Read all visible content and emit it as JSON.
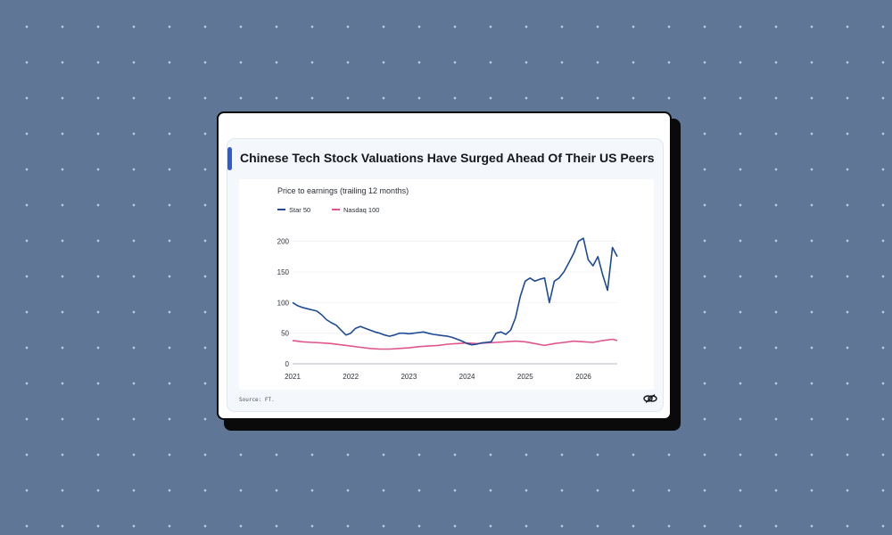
{
  "card": {
    "title": "Chinese Tech Stock Valuations Have Surged Ahead Of Their US Peers",
    "source": "Source: FT."
  },
  "colors": {
    "background": "#5f7696",
    "accent": "#2e5bd6",
    "star50": "#1e4b94",
    "nasdaq100": "#e0558f"
  },
  "icons": {
    "logo": "interlocked-rings-logo-icon"
  },
  "chart_data": {
    "type": "line",
    "title": "Price to earnings (trailing 12 months)",
    "xlabel": "",
    "ylabel": "",
    "x_ticks": [
      "2021",
      "2022",
      "2023",
      "2024",
      "2025",
      "2026"
    ],
    "y_ticks": [
      0,
      50,
      100,
      150,
      200
    ],
    "xlim": [
      "2021-01",
      "2026-08"
    ],
    "ylim": [
      0,
      240
    ],
    "grid": "horizontal",
    "legend": "top-left",
    "series": [
      {
        "name": "Star 50",
        "color": "#1e4b94",
        "points": [
          [
            "2021-01",
            100
          ],
          [
            "2021-02",
            95
          ],
          [
            "2021-03",
            92
          ],
          [
            "2021-04",
            90
          ],
          [
            "2021-05",
            88
          ],
          [
            "2021-06",
            86
          ],
          [
            "2021-07",
            80
          ],
          [
            "2021-08",
            72
          ],
          [
            "2021-09",
            67
          ],
          [
            "2021-10",
            63
          ],
          [
            "2021-11",
            55
          ],
          [
            "2021-12",
            47
          ],
          [
            "2022-01",
            50
          ],
          [
            "2022-02",
            58
          ],
          [
            "2022-03",
            61
          ],
          [
            "2022-04",
            58
          ],
          [
            "2022-05",
            55
          ],
          [
            "2022-06",
            52
          ],
          [
            "2022-07",
            50
          ],
          [
            "2022-08",
            47
          ],
          [
            "2022-09",
            45
          ],
          [
            "2022-10",
            47
          ],
          [
            "2022-11",
            50
          ],
          [
            "2022-12",
            50
          ],
          [
            "2023-01",
            49
          ],
          [
            "2023-02",
            50
          ],
          [
            "2023-03",
            51
          ],
          [
            "2023-04",
            52
          ],
          [
            "2023-05",
            50
          ],
          [
            "2023-06",
            48
          ],
          [
            "2023-07",
            47
          ],
          [
            "2023-08",
            46
          ],
          [
            "2023-09",
            45
          ],
          [
            "2023-10",
            43
          ],
          [
            "2023-11",
            40
          ],
          [
            "2023-12",
            37
          ],
          [
            "2024-01",
            33
          ],
          [
            "2024-02",
            31
          ],
          [
            "2024-03",
            32
          ],
          [
            "2024-04",
            34
          ],
          [
            "2024-05",
            35
          ],
          [
            "2024-06",
            36
          ],
          [
            "2024-07",
            50
          ],
          [
            "2024-08",
            52
          ],
          [
            "2024-09",
            48
          ],
          [
            "2024-10",
            55
          ],
          [
            "2024-11",
            75
          ],
          [
            "2024-12",
            110
          ],
          [
            "2025-01",
            135
          ],
          [
            "2025-02",
            140
          ],
          [
            "2025-03",
            135
          ],
          [
            "2025-04",
            138
          ],
          [
            "2025-05",
            140
          ],
          [
            "2025-06",
            100
          ],
          [
            "2025-07",
            135
          ],
          [
            "2025-08",
            140
          ],
          [
            "2025-09",
            150
          ],
          [
            "2025-10",
            165
          ],
          [
            "2025-11",
            180
          ],
          [
            "2025-12",
            200
          ],
          [
            "2026-01",
            205
          ],
          [
            "2026-02",
            170
          ],
          [
            "2026-03",
            160
          ],
          [
            "2026-04",
            175
          ],
          [
            "2026-05",
            145
          ],
          [
            "2026-06",
            120
          ],
          [
            "2026-07",
            190
          ],
          [
            "2026-08",
            175
          ]
        ]
      },
      {
        "name": "Nasdaq 100",
        "color": "#e0558f",
        "points": [
          [
            "2021-01",
            38
          ],
          [
            "2021-03",
            36
          ],
          [
            "2021-05",
            35
          ],
          [
            "2021-07",
            34
          ],
          [
            "2021-09",
            33
          ],
          [
            "2021-11",
            31
          ],
          [
            "2022-01",
            29
          ],
          [
            "2022-03",
            27
          ],
          [
            "2022-05",
            25
          ],
          [
            "2022-07",
            24
          ],
          [
            "2022-09",
            24
          ],
          [
            "2022-11",
            25
          ],
          [
            "2023-01",
            26
          ],
          [
            "2023-03",
            28
          ],
          [
            "2023-05",
            29
          ],
          [
            "2023-07",
            30
          ],
          [
            "2023-09",
            32
          ],
          [
            "2023-11",
            33
          ],
          [
            "2024-01",
            34
          ],
          [
            "2024-03",
            33
          ],
          [
            "2024-05",
            34
          ],
          [
            "2024-07",
            35
          ],
          [
            "2024-09",
            36
          ],
          [
            "2024-11",
            37
          ],
          [
            "2025-01",
            36
          ],
          [
            "2025-03",
            33
          ],
          [
            "2025-05",
            30
          ],
          [
            "2025-07",
            33
          ],
          [
            "2025-09",
            35
          ],
          [
            "2025-11",
            37
          ],
          [
            "2026-01",
            36
          ],
          [
            "2026-03",
            35
          ],
          [
            "2026-05",
            38
          ],
          [
            "2026-07",
            40
          ],
          [
            "2026-08",
            38
          ]
        ]
      }
    ]
  }
}
